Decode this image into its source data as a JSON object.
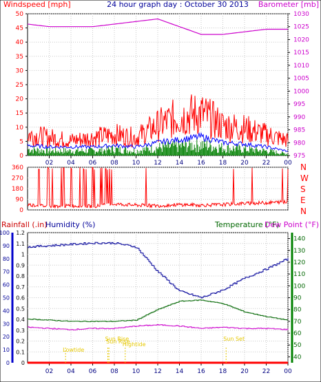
{
  "title": "24 hour graph day : October 30 2013",
  "colors": {
    "wind": "#ff0000",
    "gust_avg": "#0000ff",
    "wind_bars": "#008000",
    "baro": "#cc00cc",
    "dir": "#ff0000",
    "rain": "#ff0000",
    "humidity": "#000099",
    "temp": "#006600",
    "dew": "#cc00cc",
    "events": "#e6c800",
    "grid": "#c8c8c8",
    "frame": "#000000"
  },
  "x_ticks": [
    "02",
    "04",
    "06",
    "08",
    "10",
    "12",
    "14",
    "16",
    "18",
    "20",
    "22",
    "00"
  ],
  "chart_data": [
    {
      "type": "line",
      "title": "",
      "left_axis_label": "Windspeed [mph]",
      "right_axis_label": "Barometer [mb]",
      "left_ticks": [
        0,
        5,
        10,
        15,
        20,
        25,
        30,
        35,
        40,
        45,
        50
      ],
      "right_ticks": [
        975,
        980,
        985,
        990,
        995,
        1000,
        1005,
        1010,
        1015,
        1020,
        1025,
        1030
      ],
      "ylim_left": [
        0,
        50
      ],
      "ylim_right": [
        975,
        1030
      ],
      "x_hours": [
        0,
        2,
        4,
        6,
        8,
        10,
        12,
        14,
        16,
        18,
        20,
        22,
        24
      ],
      "series": [
        {
          "axis": "left",
          "values": [
            7,
            6,
            5,
            6,
            7,
            6,
            10,
            13,
            14,
            10,
            9,
            7,
            5
          ]
        },
        {
          "axis": "left",
          "values": [
            3.5,
            3,
            3,
            3,
            3.5,
            3,
            4.5,
            5.5,
            6.5,
            4.5,
            4,
            3,
            1.5
          ]
        },
        {
          "axis": "left",
          "values": [
            2,
            1.5,
            1.5,
            1.5,
            2,
            1.5,
            2.5,
            3,
            3.5,
            2.5,
            2,
            1.5,
            0.5
          ]
        },
        {
          "axis": "right",
          "values": [
            1026,
            1025,
            1025,
            1025,
            1026,
            1027,
            1028,
            1025,
            1022,
            1022,
            1023,
            1024,
            1024
          ]
        }
      ]
    },
    {
      "type": "line",
      "title": "",
      "left_ticks": [
        0,
        90,
        180,
        270,
        360
      ],
      "right_labels": [
        "N",
        "W",
        "S",
        "E",
        "N"
      ],
      "ylim": [
        0,
        360
      ],
      "x_hours": [
        0,
        2,
        4,
        6,
        8,
        10,
        12,
        14,
        16,
        18,
        20,
        22,
        24
      ],
      "series": [
        {
          "values": [
            45,
            30,
            35,
            30,
            50,
            40,
            35,
            45,
            40,
            45,
            55,
            60,
            70
          ]
        }
      ]
    },
    {
      "type": "line",
      "title": "",
      "rain_label": "Rainfall (.in)",
      "humidity_label": "Humidity (%)",
      "temp_label": "Temperature (°F)",
      "dew_label": "Dew Point (°F)",
      "rain_ticks": [
        "0",
        "0.1",
        "0.2",
        "0.3",
        "0.4",
        "0.5",
        "0.6",
        "0.7",
        "0.8",
        "0.9",
        "1",
        "1.1",
        "1.2"
      ],
      "humidity_ticks": [
        0,
        10,
        20,
        30,
        40,
        50,
        60,
        70,
        80,
        90,
        100
      ],
      "temp_ticks": [
        40,
        50,
        60,
        70,
        80,
        90,
        100,
        110,
        120,
        130,
        140
      ],
      "ylim_rain": [
        0,
        1.2
      ],
      "ylim_humidity": [
        0,
        100
      ],
      "ylim_temp": [
        35,
        145
      ],
      "x_hours": [
        0,
        2,
        4,
        6,
        8,
        10,
        12,
        14,
        16,
        18,
        20,
        22,
        24
      ],
      "series": [
        {
          "axis": "humidity",
          "values": [
            89,
            90,
            91,
            92,
            92,
            89,
            70,
            55,
            50,
            56,
            65,
            72,
            80
          ]
        },
        {
          "axis": "temp",
          "values": [
            72,
            71,
            70,
            70,
            70,
            71,
            80,
            87,
            88,
            85,
            78,
            74,
            71
          ]
        },
        {
          "axis": "temp",
          "values": [
            65,
            64,
            63,
            64,
            64,
            66,
            67,
            66,
            64,
            65,
            64,
            64,
            63
          ]
        },
        {
          "axis": "rain",
          "values": [
            0,
            0,
            0,
            0,
            0,
            0,
            0,
            0,
            0,
            0,
            0,
            0,
            0
          ]
        }
      ],
      "events": [
        {
          "label": "Lowtide",
          "hour": 3.5
        },
        {
          "label": "Sun Rise",
          "hour": 7.4
        },
        {
          "label": "Sun Rise",
          "hour": 7.5
        },
        {
          "label": "Hightide",
          "hour": 9.0
        },
        {
          "label": "Sun Set",
          "hour": 18.3
        }
      ]
    }
  ]
}
